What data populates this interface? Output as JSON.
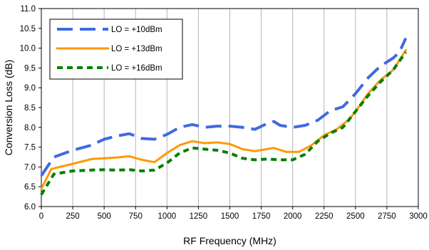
{
  "chart_data": {
    "type": "line",
    "title": "",
    "xlabel": "RF Frequency (MHz)",
    "ylabel": "Conversion Loss (dB)",
    "xlim": [
      0,
      3000
    ],
    "ylim": [
      6.0,
      11.0
    ],
    "xticks": [
      "0",
      "250",
      "500",
      "750",
      "1000",
      "1250",
      "1500",
      "1750",
      "2000",
      "2250",
      "2500",
      "2750",
      "3000"
    ],
    "yticks": [
      "6.0",
      "6.5",
      "7.0",
      "7.5",
      "8.0",
      "8.5",
      "9.0",
      "9.5",
      "10.0",
      "10.5",
      "11.0"
    ],
    "grid": "vertical",
    "legend": "top-left",
    "series": [
      {
        "name": "LO = +10dBm",
        "color": "#4169e1",
        "dash": "long-dash",
        "points": [
          [
            0,
            6.78
          ],
          [
            100,
            7.25
          ],
          [
            250,
            7.42
          ],
          [
            400,
            7.55
          ],
          [
            500,
            7.7
          ],
          [
            600,
            7.78
          ],
          [
            700,
            7.84
          ],
          [
            800,
            7.72
          ],
          [
            900,
            7.7
          ],
          [
            1000,
            7.82
          ],
          [
            1100,
            8.0
          ],
          [
            1200,
            8.07
          ],
          [
            1300,
            8.0
          ],
          [
            1400,
            8.03
          ],
          [
            1500,
            8.03
          ],
          [
            1600,
            8.0
          ],
          [
            1700,
            7.95
          ],
          [
            1800,
            8.1
          ],
          [
            1850,
            8.15
          ],
          [
            1900,
            8.05
          ],
          [
            2000,
            8.0
          ],
          [
            2100,
            8.05
          ],
          [
            2200,
            8.18
          ],
          [
            2300,
            8.42
          ],
          [
            2400,
            8.52
          ],
          [
            2500,
            8.85
          ],
          [
            2600,
            9.25
          ],
          [
            2700,
            9.55
          ],
          [
            2800,
            9.75
          ],
          [
            2850,
            9.9
          ],
          [
            2900,
            10.25
          ]
        ]
      },
      {
        "name": "LO = +13dBm",
        "color": "#ff9900",
        "dash": "solid",
        "points": [
          [
            0,
            6.45
          ],
          [
            80,
            6.95
          ],
          [
            250,
            7.08
          ],
          [
            400,
            7.2
          ],
          [
            500,
            7.22
          ],
          [
            600,
            7.24
          ],
          [
            700,
            7.27
          ],
          [
            800,
            7.18
          ],
          [
            900,
            7.12
          ],
          [
            1000,
            7.35
          ],
          [
            1100,
            7.55
          ],
          [
            1200,
            7.65
          ],
          [
            1300,
            7.6
          ],
          [
            1400,
            7.62
          ],
          [
            1500,
            7.58
          ],
          [
            1600,
            7.45
          ],
          [
            1700,
            7.4
          ],
          [
            1850,
            7.48
          ],
          [
            1950,
            7.38
          ],
          [
            2050,
            7.38
          ],
          [
            2150,
            7.55
          ],
          [
            2250,
            7.8
          ],
          [
            2350,
            7.95
          ],
          [
            2450,
            8.2
          ],
          [
            2500,
            8.4
          ],
          [
            2600,
            8.85
          ],
          [
            2700,
            9.2
          ],
          [
            2800,
            9.45
          ],
          [
            2900,
            9.95
          ]
        ]
      },
      {
        "name": "LO = +16dBm",
        "color": "#008000",
        "dash": "short-dash",
        "points": [
          [
            0,
            6.3
          ],
          [
            100,
            6.82
          ],
          [
            250,
            6.9
          ],
          [
            400,
            6.92
          ],
          [
            500,
            6.93
          ],
          [
            600,
            6.92
          ],
          [
            700,
            6.93
          ],
          [
            800,
            6.9
          ],
          [
            900,
            6.92
          ],
          [
            1000,
            7.1
          ],
          [
            1100,
            7.35
          ],
          [
            1200,
            7.48
          ],
          [
            1300,
            7.45
          ],
          [
            1400,
            7.42
          ],
          [
            1500,
            7.35
          ],
          [
            1600,
            7.22
          ],
          [
            1700,
            7.18
          ],
          [
            1800,
            7.2
          ],
          [
            1900,
            7.18
          ],
          [
            2000,
            7.18
          ],
          [
            2100,
            7.32
          ],
          [
            2200,
            7.65
          ],
          [
            2300,
            7.85
          ],
          [
            2400,
            8.0
          ],
          [
            2500,
            8.4
          ],
          [
            2600,
            8.8
          ],
          [
            2700,
            9.15
          ],
          [
            2800,
            9.45
          ],
          [
            2900,
            9.9
          ]
        ]
      }
    ]
  }
}
